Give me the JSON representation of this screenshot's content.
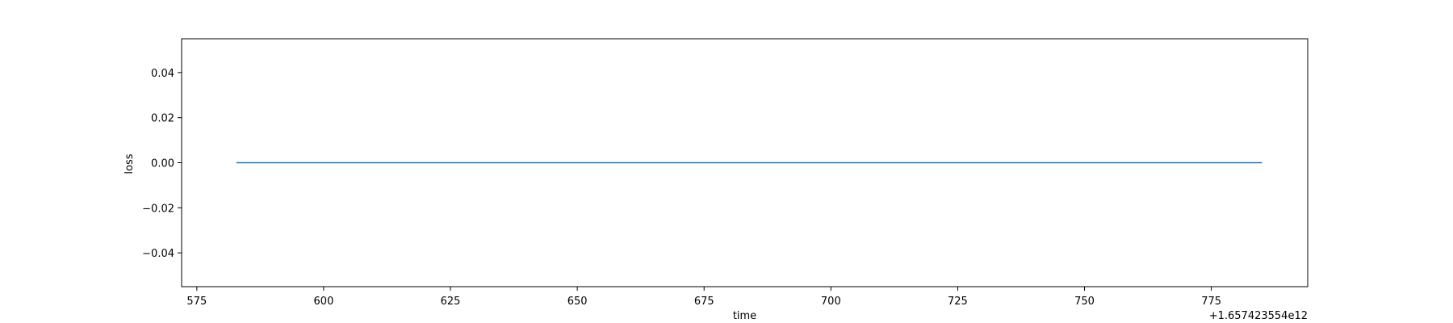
{
  "chart_data": {
    "type": "line",
    "title": "",
    "xlabel": "time",
    "ylabel": "loss",
    "x_offset_text": "+1.657423554e12",
    "xlim": [
      572,
      794
    ],
    "ylim": [
      -0.055,
      0.055
    ],
    "x_ticks": [
      575,
      600,
      625,
      650,
      675,
      700,
      725,
      750,
      775
    ],
    "x_tick_labels": [
      "575",
      "600",
      "625",
      "650",
      "675",
      "700",
      "725",
      "750",
      "775"
    ],
    "y_ticks": [
      0.04,
      0.02,
      0.0,
      -0.02,
      -0.04
    ],
    "y_tick_labels": [
      "0.04",
      "0.02",
      "0.00",
      "−0.02",
      "−0.04"
    ],
    "grid": false,
    "legend": "none",
    "series": [
      {
        "color": "#1f77b4",
        "x": [
          582.8,
          785.0
        ],
        "y": [
          0.0,
          0.0
        ]
      }
    ]
  }
}
